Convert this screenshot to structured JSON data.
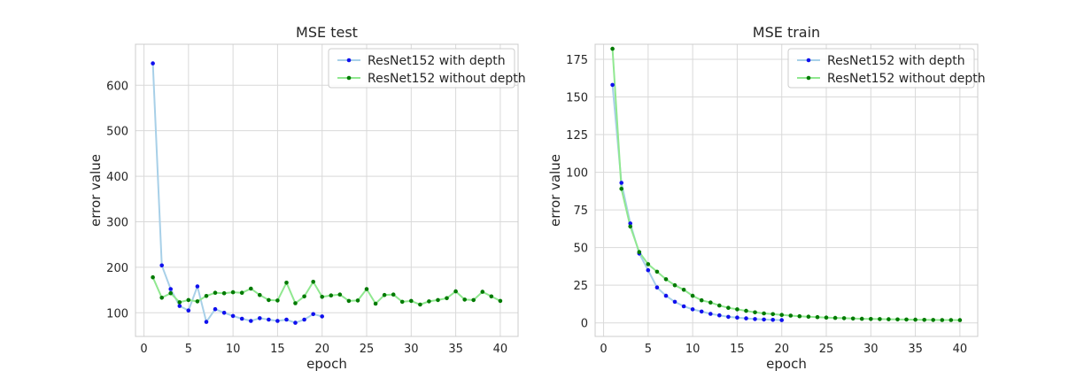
{
  "colors": {
    "series_with_line": "#a8d0e8",
    "series_with_marker": "#1010ee",
    "series_without_line": "#90e890",
    "series_without_marker": "#007a00",
    "grid": "#d9d9d9",
    "frame": "#cccccc",
    "text": "#262626"
  },
  "chart_data": [
    {
      "type": "line",
      "title": "MSE test",
      "xlabel": "epoch",
      "ylabel": "error value",
      "xlim": [
        -0.95,
        42.0
      ],
      "ylim": [
        48,
        690
      ],
      "xticks": [
        0,
        5,
        10,
        15,
        20,
        25,
        30,
        35,
        40
      ],
      "yticks": [
        100,
        200,
        300,
        400,
        500,
        600
      ],
      "grid": true,
      "legend": "top-right",
      "series": [
        {
          "name": "ResNet152 with depth",
          "x": [
            1,
            2,
            3,
            4,
            5,
            6,
            7,
            8,
            9,
            10,
            11,
            12,
            13,
            14,
            15,
            16,
            17,
            18,
            19,
            20
          ],
          "y": [
            648,
            204,
            152,
            115,
            105,
            158,
            80,
            108,
            100,
            93,
            87,
            82,
            88,
            85,
            82,
            85,
            78,
            85,
            97,
            92
          ]
        },
        {
          "name": "ResNet152 without depth",
          "x": [
            1,
            2,
            3,
            4,
            5,
            6,
            7,
            8,
            9,
            10,
            11,
            12,
            13,
            14,
            15,
            16,
            17,
            18,
            19,
            20,
            21,
            22,
            23,
            24,
            25,
            26,
            27,
            28,
            29,
            30,
            31,
            32,
            33,
            34,
            35,
            36,
            37,
            38,
            39,
            40
          ],
          "y": [
            178,
            133,
            143,
            123,
            128,
            125,
            137,
            144,
            143,
            145,
            144,
            153,
            139,
            128,
            127,
            166,
            121,
            136,
            168,
            135,
            138,
            140,
            126,
            127,
            152,
            120,
            139,
            140,
            124,
            126,
            118,
            125,
            128,
            132,
            147,
            129,
            128,
            146,
            136,
            126
          ]
        }
      ]
    },
    {
      "type": "line",
      "title": "MSE train",
      "xlabel": "epoch",
      "ylabel": "error value",
      "xlim": [
        -0.95,
        42.0
      ],
      "ylim": [
        -9,
        185
      ],
      "xticks": [
        0,
        5,
        10,
        15,
        20,
        25,
        30,
        35,
        40
      ],
      "yticks": [
        0,
        25,
        50,
        75,
        100,
        125,
        150,
        175
      ],
      "grid": true,
      "legend": "top-right",
      "series": [
        {
          "name": "ResNet152 with depth",
          "x": [
            1,
            2,
            3,
            4,
            5,
            6,
            7,
            8,
            9,
            10,
            11,
            12,
            13,
            14,
            15,
            16,
            17,
            18,
            19,
            20
          ],
          "y": [
            158,
            93,
            66,
            46,
            35,
            23.5,
            18,
            14,
            11,
            9,
            7.5,
            6,
            5,
            4,
            3.5,
            3,
            2.5,
            2.2,
            2,
            1.8
          ]
        },
        {
          "name": "ResNet152 without depth",
          "x": [
            1,
            2,
            3,
            4,
            5,
            6,
            7,
            8,
            9,
            10,
            11,
            12,
            13,
            14,
            15,
            16,
            17,
            18,
            19,
            20,
            21,
            22,
            23,
            24,
            25,
            26,
            27,
            28,
            29,
            30,
            31,
            32,
            33,
            34,
            35,
            36,
            37,
            38,
            39,
            40
          ],
          "y": [
            182,
            89,
            64,
            47,
            39,
            34,
            29,
            25,
            22,
            18,
            15,
            13.5,
            11.5,
            10,
            9,
            8,
            7,
            6.3,
            5.8,
            5.3,
            4.8,
            4.4,
            4.1,
            3.8,
            3.5,
            3.3,
            3.1,
            2.9,
            2.7,
            2.6,
            2.5,
            2.4,
            2.3,
            2.2,
            2.1,
            2.0,
            1.95,
            1.9,
            1.85,
            1.8
          ]
        }
      ]
    }
  ]
}
